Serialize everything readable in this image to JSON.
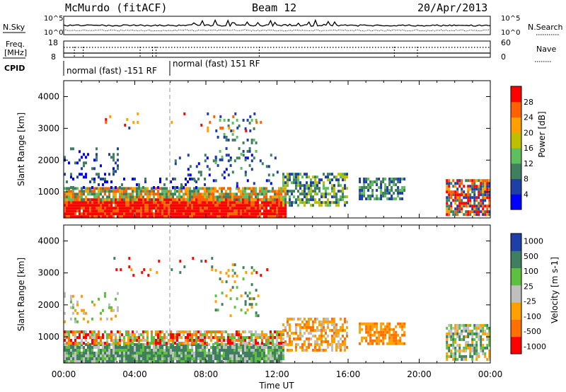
{
  "header": {
    "station": "McMurdo (fitACF)",
    "beam": "Beam 12",
    "date": "20/Apr/2013"
  },
  "top_panels": {
    "nsky_label": "N.Sky",
    "nsearch_label": "N.Search",
    "noise_ticks_left": [
      "10^5",
      "10^0"
    ],
    "noise_ticks_right": [
      "10^5",
      "10^0"
    ],
    "freq_label_line1": "Freq.",
    "freq_label_line2": "[MHz]",
    "freq_ticks": [
      "18",
      "8"
    ],
    "nave_label": "Nave",
    "nave_ticks": [
      "60",
      "0"
    ],
    "cpid_label": "CPID",
    "cpid_segments": [
      "normal (fast) -151 RF",
      "normal (fast) 151 RF"
    ]
  },
  "x_axis": {
    "label": "Time UT",
    "ticks": [
      "00:00",
      "04:00",
      "08:00",
      "12:00",
      "16:00",
      "20:00",
      "00:00"
    ]
  },
  "colors": {
    "power": [
      "#0000ff",
      "#1f3fa8",
      "#3f7f5f",
      "#5fbf5f",
      "#bfbf00",
      "#ff9f00",
      "#ff6000",
      "#ff0000"
    ],
    "velocity": [
      "#1f3fa8",
      "#3f7f5f",
      "#5fbf3f",
      "#bfbfbf",
      "#ff9f00",
      "#ff7000",
      "#ff0000"
    ]
  },
  "chart_data": [
    {
      "type": "heatmap",
      "title": "Power",
      "ylabel": "Slant Range [km]",
      "xlabel": "Time UT",
      "ylim": [
        180,
        4500
      ],
      "y_ticks": [
        "1000",
        "2000",
        "3000",
        "4000"
      ],
      "colorbar_label": "Power [dB]",
      "colorbar_ticks": [
        "4",
        "8",
        "12",
        "16",
        "20",
        "24",
        "28"
      ],
      "x_ticks": [
        "00:00",
        "04:00",
        "08:00",
        "12:00",
        "16:00",
        "20:00",
        "00:00"
      ]
    },
    {
      "type": "heatmap",
      "title": "Velocity",
      "ylabel": "Slant Range [km]",
      "xlabel": "Time UT",
      "ylim": [
        180,
        4500
      ],
      "y_ticks": [
        "1000",
        "2000",
        "3000",
        "4000"
      ],
      "colorbar_label": "Velocity [m s-1]",
      "colorbar_ticks": [
        "1000",
        "500",
        "100",
        "25",
        "-25",
        "-100",
        "-500",
        "-1000"
      ],
      "x_ticks": [
        "00:00",
        "04:00",
        "08:00",
        "12:00",
        "16:00",
        "20:00",
        "00:00"
      ]
    }
  ]
}
